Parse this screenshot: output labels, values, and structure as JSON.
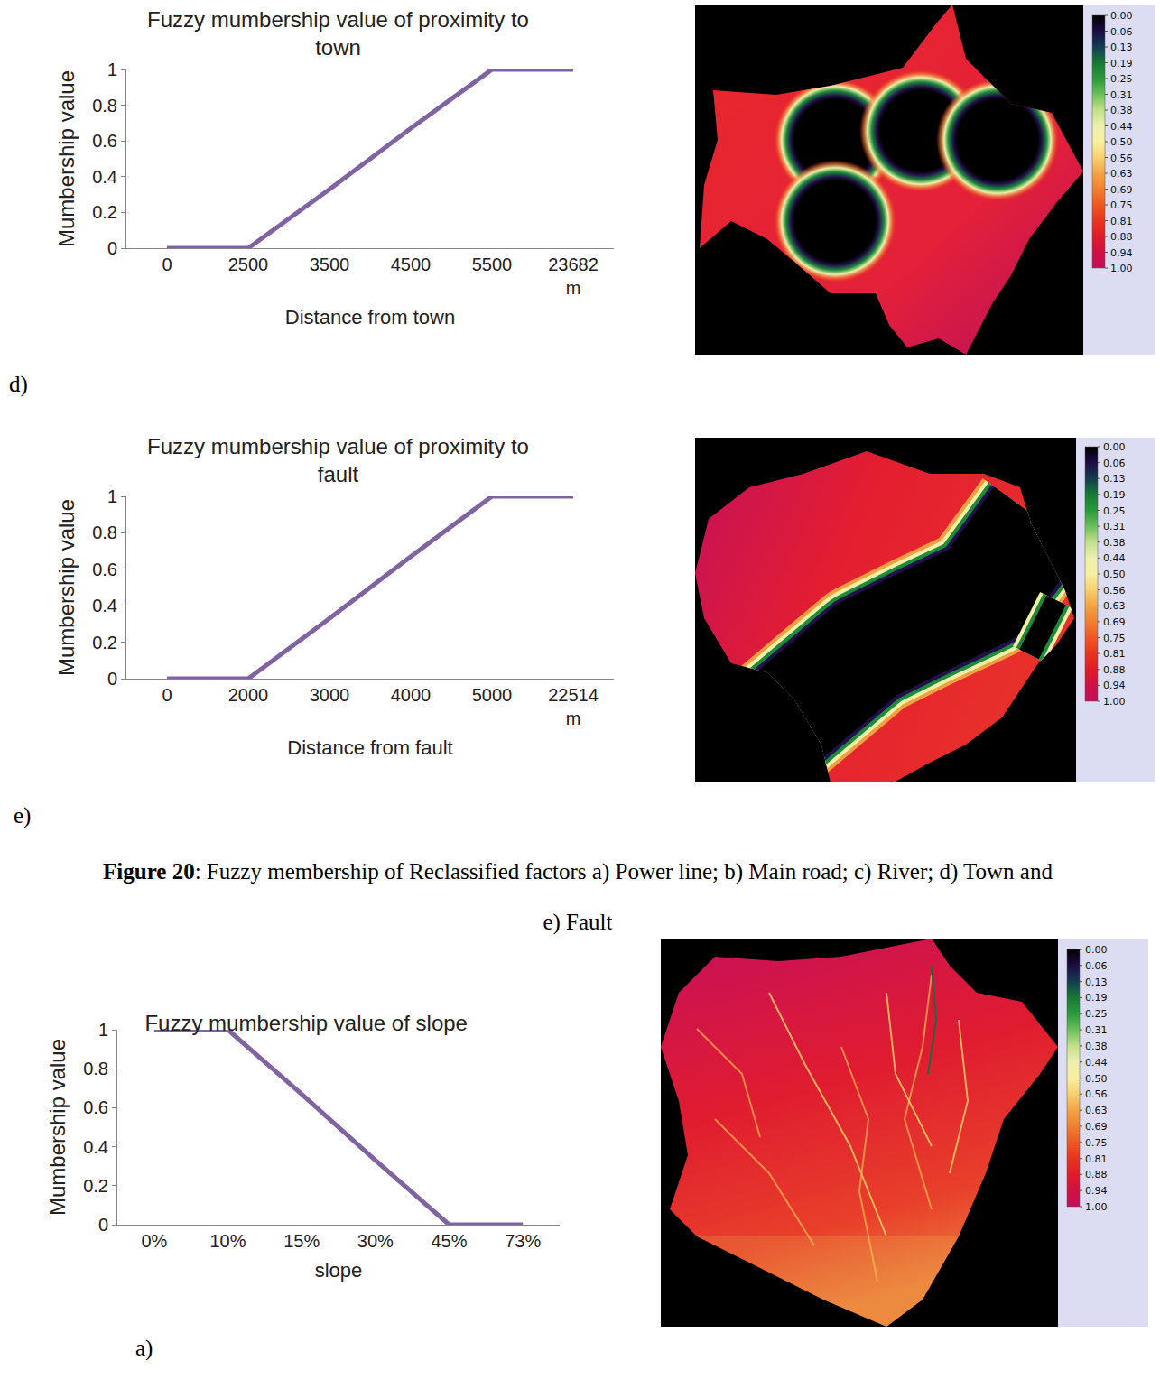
{
  "chart_data": [
    {
      "type": "line",
      "title": "Fuzzy mumbership value of proximity to town",
      "x_label": "Distance from town",
      "y_label": "Mumbership value",
      "categories": [
        "0",
        "2500",
        "3500",
        "4500",
        "5500",
        "23682 m"
      ],
      "values": [
        0,
        0,
        0.33,
        0.67,
        1,
        1
      ],
      "color": "#8064a2",
      "ylim": [
        0,
        1
      ],
      "yticks": [
        0,
        0.2,
        0.4,
        0.6,
        0.8,
        1
      ],
      "grid": false
    },
    {
      "type": "line",
      "title": "Fuzzy mumbership value of proximity to fault",
      "x_label": "Distance from fault",
      "y_label": "Mumbership value",
      "categories": [
        "0",
        "2000",
        "3000",
        "4000",
        "5000",
        "22514 m"
      ],
      "values": [
        0,
        0,
        0.33,
        0.67,
        1,
        1
      ],
      "color": "#8064a2",
      "ylim": [
        0,
        1
      ],
      "yticks": [
        0,
        0.2,
        0.4,
        0.6,
        0.8,
        1
      ],
      "grid": false
    },
    {
      "type": "line",
      "title": "Fuzzy mumbership value of slope",
      "x_label": "slope",
      "y_label": "Mumbership value",
      "categories": [
        "0%",
        "10%",
        "15%",
        "30%",
        "45%",
        "73%"
      ],
      "values": [
        1,
        1,
        0.67,
        0.33,
        0,
        0
      ],
      "color": "#8064a2",
      "ylim": [
        0,
        1
      ],
      "yticks": [
        0,
        0.2,
        0.4,
        0.6,
        0.8,
        1
      ],
      "grid": false
    }
  ],
  "panel_labels": [
    "d)",
    "e)",
    "a)"
  ],
  "caption": {
    "label": "Figure 20",
    "text": ": Fuzzy membership of Reclassified factors a) Power line; b) Main road; c) River; d) Town and e) Fault"
  },
  "maps": [
    {
      "colorbar_range": [
        0,
        1
      ],
      "colorbar_ticks": [
        {
          "value": 0,
          "label": "0.00"
        },
        {
          "value": 0.0625,
          "label": "0.06"
        },
        {
          "value": 0.125,
          "label": "0.13"
        },
        {
          "value": 0.1875,
          "label": "0.19"
        },
        {
          "value": 0.25,
          "label": "0.25"
        },
        {
          "value": 0.3125,
          "label": "0.31"
        },
        {
          "value": 0.375,
          "label": "0.38"
        },
        {
          "value": 0.4375,
          "label": "0.44"
        },
        {
          "value": 0.5,
          "label": "0.50"
        },
        {
          "value": 0.5625,
          "label": "0.56"
        },
        {
          "value": 0.625,
          "label": "0.63"
        },
        {
          "value": 0.6875,
          "label": "0.69"
        },
        {
          "value": 0.75,
          "label": "0.75"
        },
        {
          "value": 0.8125,
          "label": "0.81"
        },
        {
          "value": 0.875,
          "label": "0.88"
        },
        {
          "value": 0.9375,
          "label": "0.94"
        },
        {
          "value": 1,
          "label": "1.00"
        }
      ]
    },
    {
      "colorbar_range": [
        0,
        1
      ],
      "colorbar_ticks": [
        {
          "value": 0,
          "label": "0.00"
        },
        {
          "value": 0.0625,
          "label": "0.06"
        },
        {
          "value": 0.125,
          "label": "0.13"
        },
        {
          "value": 0.1875,
          "label": "0.19"
        },
        {
          "value": 0.25,
          "label": "0.25"
        },
        {
          "value": 0.3125,
          "label": "0.31"
        },
        {
          "value": 0.375,
          "label": "0.38"
        },
        {
          "value": 0.4375,
          "label": "0.44"
        },
        {
          "value": 0.5,
          "label": "0.50"
        },
        {
          "value": 0.5625,
          "label": "0.56"
        },
        {
          "value": 0.625,
          "label": "0.63"
        },
        {
          "value": 0.6875,
          "label": "0.69"
        },
        {
          "value": 0.75,
          "label": "0.75"
        },
        {
          "value": 0.8125,
          "label": "0.81"
        },
        {
          "value": 0.875,
          "label": "0.88"
        },
        {
          "value": 0.9375,
          "label": "0.94"
        },
        {
          "value": 1,
          "label": "1.00"
        }
      ]
    },
    {
      "colorbar_range": [
        0,
        1
      ],
      "colorbar_ticks": [
        {
          "value": 0,
          "label": "0.00"
        },
        {
          "value": 0.0625,
          "label": "0.06"
        },
        {
          "value": 0.125,
          "label": "0.13"
        },
        {
          "value": 0.1875,
          "label": "0.19"
        },
        {
          "value": 0.25,
          "label": "0.25"
        },
        {
          "value": 0.3125,
          "label": "0.31"
        },
        {
          "value": 0.375,
          "label": "0.38"
        },
        {
          "value": 0.4375,
          "label": "0.44"
        },
        {
          "value": 0.5,
          "label": "0.50"
        },
        {
          "value": 0.5625,
          "label": "0.56"
        },
        {
          "value": 0.625,
          "label": "0.63"
        },
        {
          "value": 0.6875,
          "label": "0.69"
        },
        {
          "value": 0.75,
          "label": "0.75"
        },
        {
          "value": 0.8125,
          "label": "0.81"
        },
        {
          "value": 0.875,
          "label": "0.88"
        },
        {
          "value": 0.9375,
          "label": "0.94"
        },
        {
          "value": 1,
          "label": "1.00"
        }
      ]
    }
  ]
}
